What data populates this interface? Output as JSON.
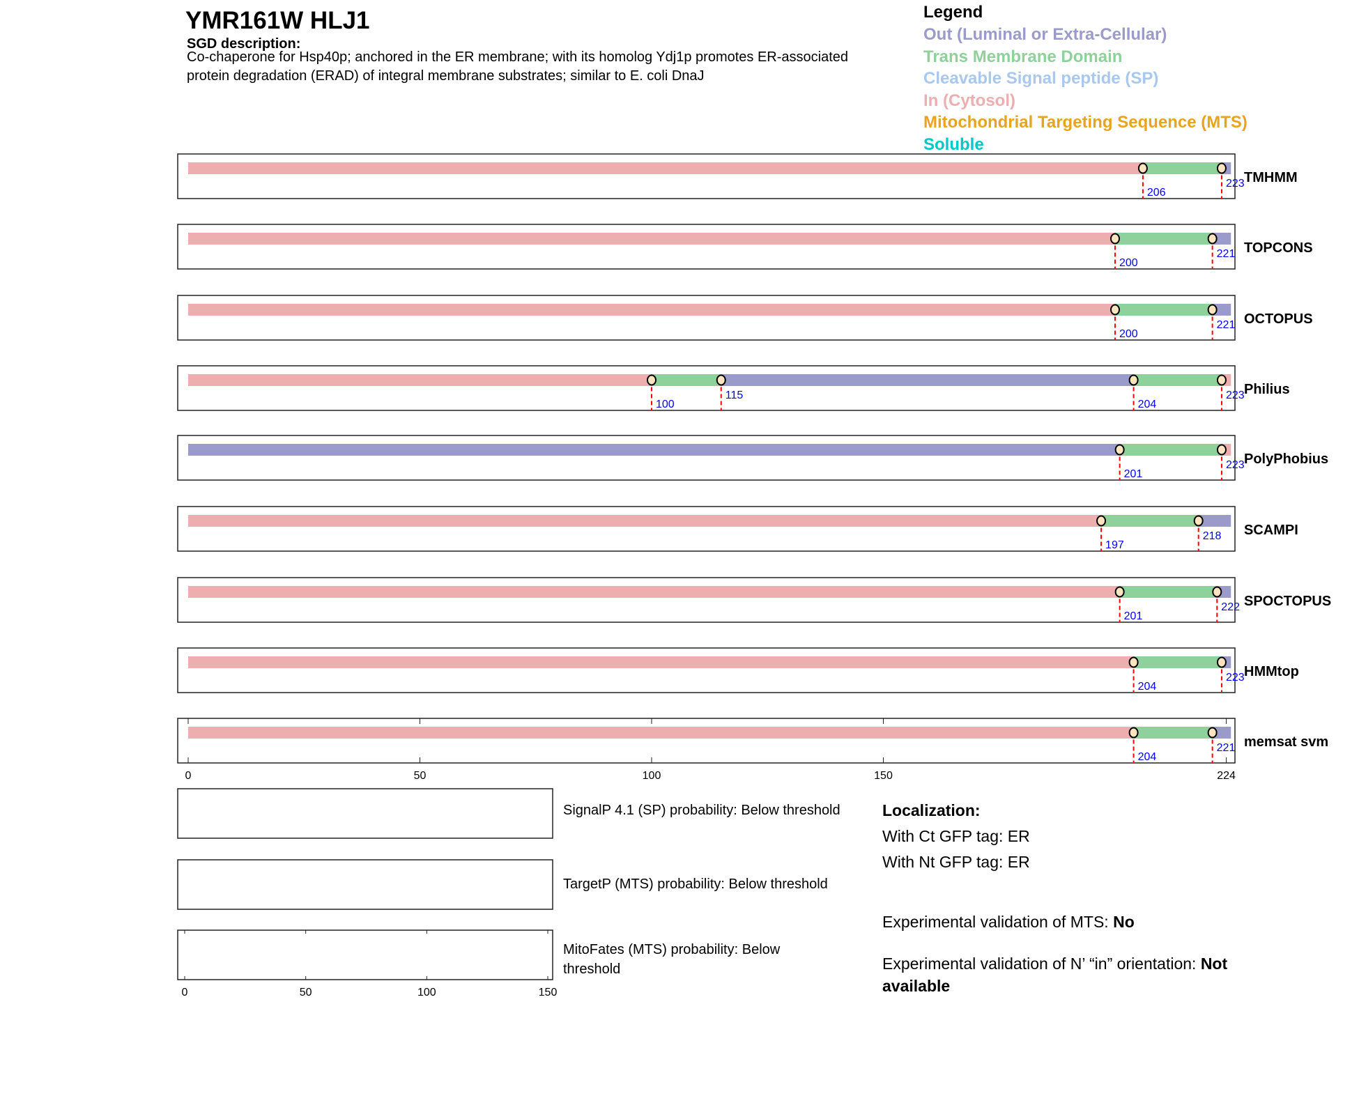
{
  "header": {
    "title": "YMR161W  HLJ1",
    "sgd_label": "SGD description:",
    "description_lines": [
      "Co-chaperone for Hsp40p; anchored in the ER membrane; with its homolog Ydj1p promotes ER-associated",
      "protein degradation (ERAD) of integral membrane substrates; similar to E. coli DnaJ"
    ]
  },
  "legend": {
    "title": "Legend",
    "items": [
      {
        "label": "Out (Luminal or Extra-Cellular)",
        "color": "#9b9bcb"
      },
      {
        "label": "Trans Membrane Domain",
        "color": "#8fd19b"
      },
      {
        "label": "Cleavable Signal peptide (SP)",
        "color": "#a9c8ee"
      },
      {
        "label": "In (Cytosol)",
        "color": "#edaeb0"
      },
      {
        "label": "Mitochondrial Targeting Sequence (MTS)",
        "color": "#e8a41c"
      },
      {
        "label": "Soluble",
        "color": "#00c8c8"
      }
    ]
  },
  "chart_data": {
    "type": "topology-tracks",
    "xlim": [
      0,
      224
    ],
    "xticks": [
      "0",
      "50",
      "100",
      "150",
      "224"
    ],
    "xtick_values": [
      0,
      50,
      100,
      150,
      224
    ],
    "colors": {
      "out": "#9b9bcb",
      "tm": "#8fd19b",
      "in": "#edaeb0"
    },
    "tracks": [
      {
        "name": "TMHMM",
        "segments": [
          [
            "in",
            0,
            206
          ],
          [
            "tm",
            206,
            223
          ],
          [
            "out",
            223,
            225
          ]
        ],
        "boundaries": [
          206,
          223
        ]
      },
      {
        "name": "TOPCONS",
        "segments": [
          [
            "in",
            0,
            200
          ],
          [
            "tm",
            200,
            221
          ],
          [
            "out",
            221,
            225
          ]
        ],
        "boundaries": [
          200,
          221
        ]
      },
      {
        "name": "OCTOPUS",
        "segments": [
          [
            "in",
            0,
            200
          ],
          [
            "tm",
            200,
            221
          ],
          [
            "out",
            221,
            225
          ]
        ],
        "boundaries": [
          200,
          221
        ]
      },
      {
        "name": "Philius",
        "segments": [
          [
            "in",
            0,
            100
          ],
          [
            "tm",
            100,
            115
          ],
          [
            "out",
            115,
            204
          ],
          [
            "tm",
            204,
            223
          ],
          [
            "in",
            223,
            225
          ]
        ],
        "boundaries": [
          100,
          115,
          204,
          223
        ]
      },
      {
        "name": "PolyPhobius",
        "segments": [
          [
            "out",
            0,
            201
          ],
          [
            "tm",
            201,
            223
          ],
          [
            "in",
            223,
            225
          ]
        ],
        "boundaries": [
          201,
          223
        ]
      },
      {
        "name": "SCAMPI",
        "segments": [
          [
            "in",
            0,
            197
          ],
          [
            "tm",
            197,
            218
          ],
          [
            "out",
            218,
            225
          ]
        ],
        "boundaries": [
          197,
          218
        ]
      },
      {
        "name": "SPOCTOPUS",
        "segments": [
          [
            "in",
            0,
            201
          ],
          [
            "tm",
            201,
            222
          ],
          [
            "out",
            222,
            225
          ]
        ],
        "boundaries": [
          201,
          222
        ]
      },
      {
        "name": "HMMtop",
        "segments": [
          [
            "in",
            0,
            204
          ],
          [
            "tm",
            204,
            223
          ],
          [
            "out",
            223,
            225
          ]
        ],
        "boundaries": [
          204,
          223
        ]
      },
      {
        "name": "memsat svm",
        "segments": [
          [
            "in",
            0,
            204
          ],
          [
            "tm",
            204,
            221
          ],
          [
            "out",
            221,
            225
          ]
        ],
        "boundaries": [
          204,
          221
        ]
      }
    ],
    "probability_panels": {
      "xlim": [
        0,
        150
      ],
      "xticks": [
        "0",
        "50",
        "100",
        "150"
      ],
      "xtick_values": [
        0,
        50,
        100,
        150
      ],
      "panels": [
        {
          "label": "SignalP 4.1 (SP) probability: Below threshold"
        },
        {
          "label": "TargetP (MTS) probability: Below threshold"
        },
        {
          "label_lines": [
            "MitoFates (MTS) probability: Below",
            "threshold"
          ]
        }
      ]
    }
  },
  "info": {
    "localization_label": "Localization:",
    "ct_gfp": "With Ct GFP tag: ER",
    "nt_gfp": "With Nt GFP tag: ER",
    "mts_validation_label": "Experimental validation of MTS: ",
    "mts_validation_value": "No",
    "orientation_label": "Experimental validation of N’ “in” orientation: ",
    "orientation_value_1": "Not",
    "orientation_value_2": "available"
  }
}
